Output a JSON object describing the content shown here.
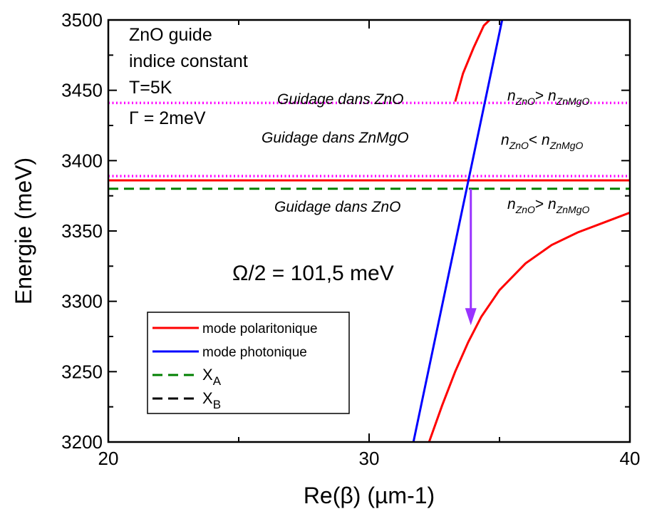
{
  "chart_data": {
    "type": "line",
    "title": "",
    "xlabel": "Re(β) (µm-1)",
    "ylabel": "Energie (meV)",
    "xlim": [
      20,
      40
    ],
    "ylim": [
      3200,
      3500
    ],
    "x_ticks": [
      20,
      30,
      40
    ],
    "y_ticks": [
      3200,
      3250,
      3300,
      3350,
      3400,
      3450,
      3500
    ],
    "grid": false,
    "legend_position": "bottom-left",
    "colors": {
      "polariton": "#ff0000",
      "photon": "#0000ff",
      "XA": "#008000",
      "XB": "#000000",
      "magenta": "#ff00ff",
      "arrow": "#9933ff"
    },
    "series": [
      {
        "name": "mode polaritonique",
        "style": "solid",
        "segments": [
          {
            "x": [
              33.3,
              33.6,
              34.0,
              34.4,
              34.9,
              35.2
            ],
            "y": [
              3442,
              3462,
              3480,
              3496,
              3505,
              3510
            ]
          },
          {
            "x": [
              20.0,
              25.0,
              30.0,
              33.0,
              35.0,
              40.0
            ],
            "y": [
              3386,
              3386,
              3386,
              3386,
              3386,
              3386
            ]
          },
          {
            "x": [
              32.3,
              32.8,
              33.3,
              33.8,
              34.3,
              35.0,
              36.0,
              37.0,
              38.0,
              39.0,
              40.0
            ],
            "y": [
              3200,
              3226,
              3250,
              3271,
              3289,
              3308,
              3327,
              3340,
              3349,
              3356,
              3363
            ]
          }
        ]
      },
      {
        "name": "mode photonique",
        "style": "solid",
        "x": [
          31.7,
          35.1
        ],
        "y": [
          3200,
          3500
        ]
      },
      {
        "name": "X",
        "sub": "A",
        "style": "dashed",
        "x": [
          20,
          40
        ],
        "y": [
          3380,
          3380
        ]
      },
      {
        "name": "X",
        "sub": "B",
        "style": "dashed",
        "x": [
          20,
          40
        ],
        "y": [
          3386,
          3386
        ]
      }
    ],
    "magenta_lines_y": [
      3441,
      3389
    ],
    "arrow": {
      "x": 33.9,
      "y_start": 3380,
      "y_end": 3283
    },
    "annotations": {
      "info_lines": [
        "ZnO guide",
        "indice constant",
        "T=5K",
        "Γ = 2meV"
      ],
      "guidage_top": "Guidage dans ZnO",
      "guidage_mid": "Guidage dans ZnMgO",
      "guidage_bot": "Guidage dans ZnO",
      "omega": "Ω/2 = 101,5 meV",
      "n_top": {
        "a": "n",
        "a_sub": "ZnO",
        "op": ">",
        "b": " n",
        "b_sub": "ZnMgO"
      },
      "n_mid": {
        "a": "n",
        "a_sub": "ZnO",
        "op": "<",
        "b": " n",
        "b_sub": "ZnMgO"
      },
      "n_bot": {
        "a": "n",
        "a_sub": "ZnO",
        "op": ">",
        "b": " n",
        "b_sub": "ZnMgO"
      }
    }
  }
}
